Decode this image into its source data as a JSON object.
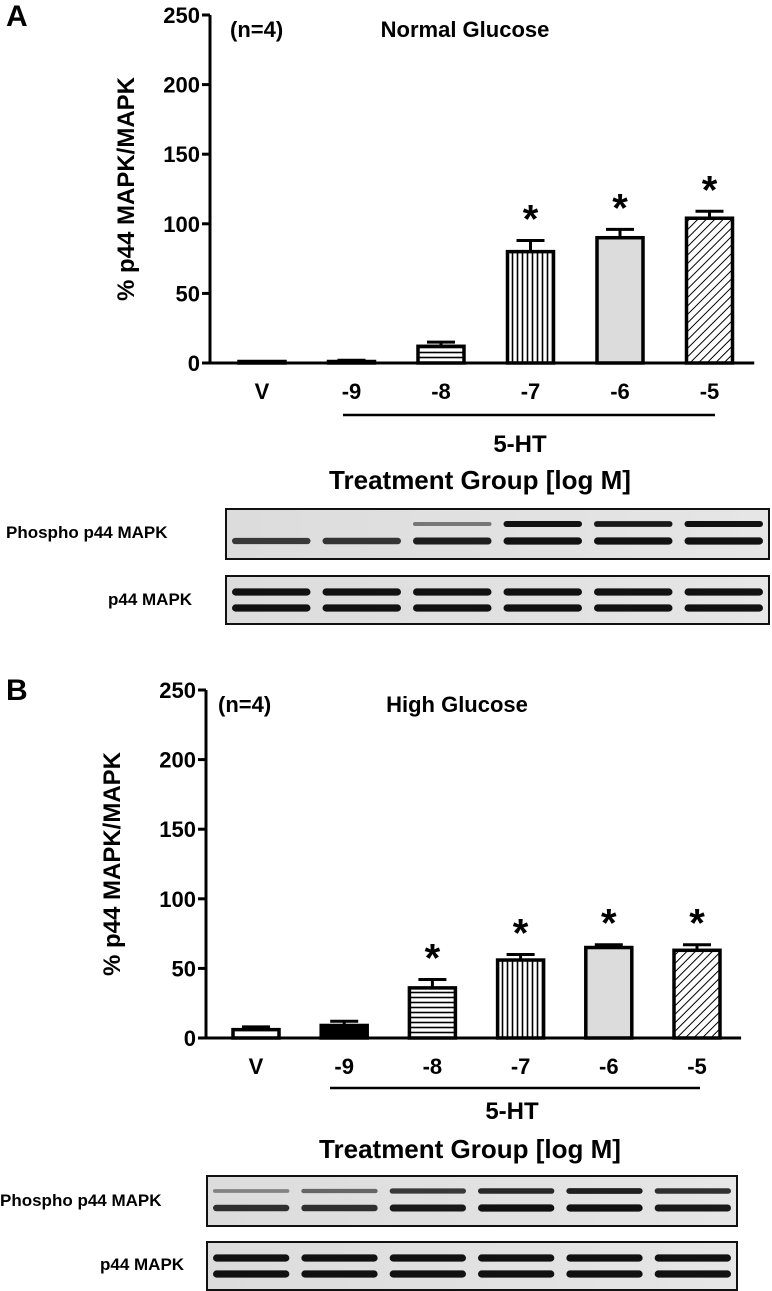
{
  "chart_data": [
    {
      "panel": "A",
      "type": "bar",
      "title": "Normal Glucose",
      "n_label": "(n=4)",
      "ylabel": "% p44 MAPK/MAPK",
      "xlabel": "Treatment Group [log M]",
      "group_label": "5-HT",
      "ylim": [
        0,
        250
      ],
      "yticks": [
        0,
        50,
        100,
        150,
        200,
        250
      ],
      "categories": [
        "V",
        "-9",
        "-8",
        "-7",
        "-6",
        "-5"
      ],
      "values": [
        0,
        1,
        12,
        80,
        90,
        104
      ],
      "errors": [
        0,
        1,
        3,
        8,
        6,
        5
      ],
      "significant": [
        false,
        false,
        false,
        true,
        true,
        true
      ],
      "patterns": [
        "white",
        "white",
        "hlines",
        "vlines",
        "gray",
        "diag"
      ],
      "blot_labels": [
        "Phospho p44 MAPK",
        "p44 MAPK"
      ]
    },
    {
      "panel": "B",
      "type": "bar",
      "title": "High Glucose",
      "n_label": "(n=4)",
      "ylabel": "% p44 MAPK/MAPK",
      "xlabel": "Treatment Group [log M]",
      "group_label": "5-HT",
      "ylim": [
        0,
        250
      ],
      "yticks": [
        0,
        50,
        100,
        150,
        200,
        250
      ],
      "categories": [
        "V",
        "-9",
        "-8",
        "-7",
        "-6",
        "-5"
      ],
      "values": [
        6,
        9,
        36,
        56,
        65,
        63
      ],
      "errors": [
        2,
        3,
        6,
        4,
        2,
        4
      ],
      "significant": [
        false,
        false,
        true,
        true,
        true,
        true
      ],
      "patterns": [
        "white",
        "black",
        "hlines",
        "vlines",
        "gray",
        "diag"
      ],
      "blot_labels": [
        "Phospho p44 MAPK",
        "p44 MAPK"
      ]
    }
  ],
  "asterisk": "*"
}
